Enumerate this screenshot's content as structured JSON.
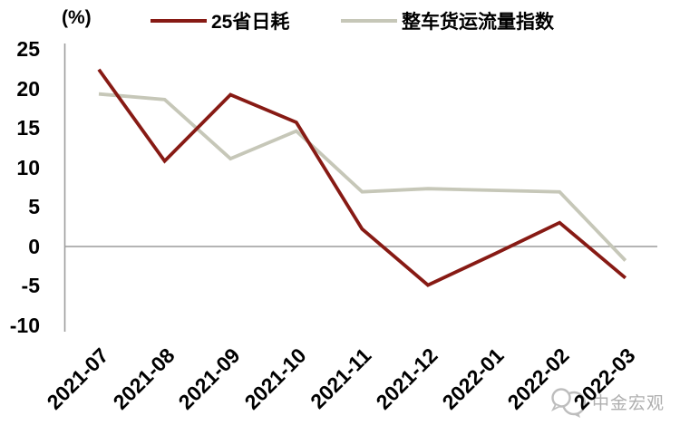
{
  "chart_data": {
    "type": "line",
    "title": "",
    "unit_label": "(%)",
    "categories": [
      "2021-07",
      "2021-08",
      "2021-09",
      "2021-10",
      "2021-11",
      "2021-12",
      "2022-01",
      "2022-02",
      "2022-03"
    ],
    "series": [
      {
        "name": "25省日耗",
        "color": "#871A14",
        "values": [
          22.4,
          10.8,
          19.2,
          15.7,
          2.2,
          -4.9,
          -1.0,
          3.0,
          -4.0
        ]
      },
      {
        "name": "整车货运流量指数",
        "color": "#C6C7B8",
        "values": [
          19.3,
          18.6,
          11.1,
          14.6,
          6.9,
          7.3,
          7.1,
          6.9,
          -1.8
        ]
      }
    ],
    "yticks": [
      25,
      20,
      15,
      10,
      5,
      0,
      -5,
      -10
    ],
    "ylim": [
      -10,
      25
    ],
    "xlabel": "",
    "ylabel": "",
    "grid": "zero-line-only",
    "legend_position": "top",
    "axis_color": "#9C9C9C",
    "tick_color": "#000000"
  },
  "watermark": {
    "text": "中金宏观",
    "icon": "cicc-speech-bubbles-logo",
    "color": "#AFAFAF"
  }
}
